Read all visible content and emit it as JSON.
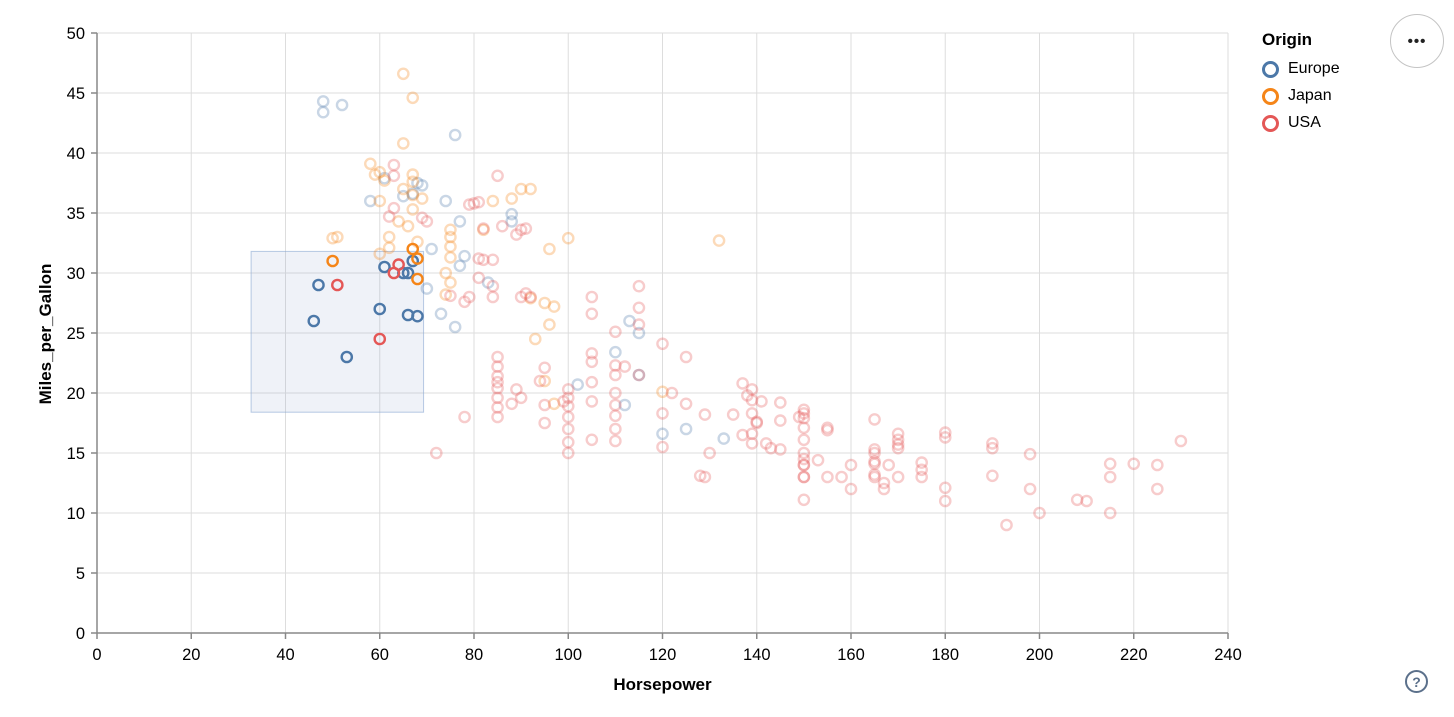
{
  "chart_data": {
    "type": "scatter",
    "title": "",
    "xlabel": "Horsepower",
    "ylabel": "Miles_per_Gallon",
    "xlim": [
      0,
      240
    ],
    "ylim": [
      0,
      50
    ],
    "x_ticks": [
      0,
      20,
      40,
      60,
      80,
      100,
      120,
      140,
      160,
      180,
      200,
      220,
      240
    ],
    "y_ticks": [
      0,
      5,
      10,
      15,
      20,
      25,
      30,
      35,
      40,
      45,
      50
    ],
    "grid": true,
    "legend": {
      "title": "Origin",
      "position": "top-right",
      "entries": [
        {
          "label": "Europe",
          "color": "#4c78a8"
        },
        {
          "label": "Japan",
          "color": "#f58518"
        },
        {
          "label": "USA",
          "color": "#e45756"
        }
      ]
    },
    "origin_codes": {
      "E": "Europe",
      "J": "Japan",
      "U": "USA"
    },
    "colors": {
      "Europe": "#4c78a8",
      "Japan": "#f58518",
      "USA": "#e45756"
    },
    "grid_color": "#dddddd",
    "axis_color": "#888888",
    "label_color": "#000000",
    "unselected_opacity": 0.3,
    "selection_brush": {
      "x": [
        32.7,
        69.3
      ],
      "y": [
        18.4,
        31.8
      ],
      "fill": "#7896c8",
      "fill_opacity": 0.12,
      "stroke": "#88a6d2"
    },
    "points": [
      [
        46,
        26,
        "E",
        1
      ],
      [
        47,
        29,
        "E",
        1
      ],
      [
        53,
        23,
        "E",
        1
      ],
      [
        60,
        27,
        "E",
        1
      ],
      [
        61,
        30.5,
        "E",
        1
      ],
      [
        65,
        30,
        "E",
        1
      ],
      [
        66,
        30,
        "E",
        1
      ],
      [
        67,
        31,
        "E",
        1
      ],
      [
        66,
        26.5,
        "E",
        1
      ],
      [
        68,
        26.4,
        "E",
        1
      ],
      [
        50,
        31,
        "J",
        1
      ],
      [
        67,
        32,
        "J",
        1
      ],
      [
        68,
        31.2,
        "J",
        1
      ],
      [
        68,
        29.5,
        "J",
        1
      ],
      [
        51,
        29,
        "U",
        1
      ],
      [
        60,
        24.5,
        "U",
        1
      ],
      [
        63,
        30,
        "U",
        1
      ],
      [
        64,
        30.7,
        "U",
        1
      ],
      [
        48,
        44.3,
        "E",
        0
      ],
      [
        48,
        43.4,
        "E",
        0
      ],
      [
        52,
        44,
        "E",
        0
      ],
      [
        76,
        41.5,
        "E",
        0
      ],
      [
        61,
        37.9,
        "E",
        0
      ],
      [
        68,
        37.5,
        "E",
        0
      ],
      [
        69,
        37.3,
        "E",
        0
      ],
      [
        65,
        36.4,
        "E",
        0
      ],
      [
        67,
        36.6,
        "E",
        0
      ],
      [
        58,
        36,
        "E",
        0
      ],
      [
        74,
        36,
        "E",
        0
      ],
      [
        77,
        34.3,
        "E",
        0
      ],
      [
        88,
        34.9,
        "E",
        0
      ],
      [
        88,
        34.3,
        "E",
        0
      ],
      [
        83,
        29.2,
        "E",
        0
      ],
      [
        77,
        30.6,
        "E",
        0
      ],
      [
        78,
        31.4,
        "E",
        0
      ],
      [
        70,
        28.7,
        "E",
        0
      ],
      [
        73,
        26.6,
        "E",
        0
      ],
      [
        76,
        25.5,
        "E",
        0
      ],
      [
        71,
        32,
        "E",
        0
      ],
      [
        102,
        20.7,
        "E",
        0
      ],
      [
        110,
        23.4,
        "E",
        0
      ],
      [
        113,
        26,
        "E",
        0
      ],
      [
        115,
        25,
        "E",
        0
      ],
      [
        115,
        21.5,
        "E",
        0
      ],
      [
        112,
        19,
        "E",
        0
      ],
      [
        120,
        16.6,
        "E",
        0
      ],
      [
        125,
        17,
        "E",
        0
      ],
      [
        133,
        16.2,
        "E",
        0
      ],
      [
        65,
        46.6,
        "J",
        0
      ],
      [
        67,
        44.6,
        "J",
        0
      ],
      [
        65,
        40.8,
        "J",
        0
      ],
      [
        58,
        39.1,
        "J",
        0
      ],
      [
        60,
        38.4,
        "J",
        0
      ],
      [
        61,
        37.7,
        "J",
        0
      ],
      [
        59,
        38.2,
        "J",
        0
      ],
      [
        67,
        38.2,
        "J",
        0
      ],
      [
        67,
        37.6,
        "J",
        0
      ],
      [
        65,
        37,
        "J",
        0
      ],
      [
        67,
        36.5,
        "J",
        0
      ],
      [
        60,
        36,
        "J",
        0
      ],
      [
        69,
        36.2,
        "J",
        0
      ],
      [
        67,
        35.3,
        "J",
        0
      ],
      [
        64,
        34.3,
        "J",
        0
      ],
      [
        66,
        33.9,
        "J",
        0
      ],
      [
        62,
        33,
        "J",
        0
      ],
      [
        51,
        33,
        "J",
        0
      ],
      [
        50,
        32.9,
        "J",
        0
      ],
      [
        62,
        32.1,
        "J",
        0
      ],
      [
        60,
        31.6,
        "J",
        0
      ],
      [
        68,
        32.6,
        "J",
        0
      ],
      [
        75,
        33.6,
        "J",
        0
      ],
      [
        75,
        33,
        "J",
        0
      ],
      [
        75,
        32.2,
        "J",
        0
      ],
      [
        75,
        31.3,
        "J",
        0
      ],
      [
        74,
        30,
        "J",
        0
      ],
      [
        75,
        29.2,
        "J",
        0
      ],
      [
        74,
        28.2,
        "J",
        0
      ],
      [
        82,
        33.6,
        "J",
        0
      ],
      [
        84,
        36,
        "J",
        0
      ],
      [
        88,
        36.2,
        "J",
        0
      ],
      [
        90,
        37,
        "J",
        0
      ],
      [
        92,
        37,
        "J",
        0
      ],
      [
        92,
        27.9,
        "J",
        0
      ],
      [
        95,
        27.5,
        "J",
        0
      ],
      [
        97,
        27.2,
        "J",
        0
      ],
      [
        96,
        25.7,
        "J",
        0
      ],
      [
        93,
        24.5,
        "J",
        0
      ],
      [
        100,
        32.9,
        "J",
        0
      ],
      [
        96,
        32,
        "J",
        0
      ],
      [
        95,
        21,
        "J",
        0
      ],
      [
        97,
        19.1,
        "J",
        0
      ],
      [
        132,
        32.7,
        "J",
        0
      ],
      [
        120,
        20.1,
        "J",
        0
      ],
      [
        63,
        39,
        "U",
        0
      ],
      [
        63,
        38.1,
        "U",
        0
      ],
      [
        85,
        38.1,
        "U",
        0
      ],
      [
        63,
        35.4,
        "U",
        0
      ],
      [
        62,
        34.7,
        "U",
        0
      ],
      [
        70,
        34.3,
        "U",
        0
      ],
      [
        69,
        34.6,
        "U",
        0
      ],
      [
        79,
        35.7,
        "U",
        0
      ],
      [
        80,
        35.8,
        "U",
        0
      ],
      [
        81,
        35.9,
        "U",
        0
      ],
      [
        86,
        33.9,
        "U",
        0
      ],
      [
        89,
        33.2,
        "U",
        0
      ],
      [
        82,
        33.7,
        "U",
        0
      ],
      [
        90,
        33.6,
        "U",
        0
      ],
      [
        91,
        33.7,
        "U",
        0
      ],
      [
        81,
        31.2,
        "U",
        0
      ],
      [
        82,
        31.1,
        "U",
        0
      ],
      [
        84,
        31.1,
        "U",
        0
      ],
      [
        81,
        29.6,
        "U",
        0
      ],
      [
        84,
        28.9,
        "U",
        0
      ],
      [
        84,
        28,
        "U",
        0
      ],
      [
        75,
        28.1,
        "U",
        0
      ],
      [
        79,
        28,
        "U",
        0
      ],
      [
        78,
        27.6,
        "U",
        0
      ],
      [
        90,
        28,
        "U",
        0
      ],
      [
        91,
        28.3,
        "U",
        0
      ],
      [
        92,
        28,
        "U",
        0
      ],
      [
        105,
        28,
        "U",
        0
      ],
      [
        105,
        26.6,
        "U",
        0
      ],
      [
        110,
        25.1,
        "U",
        0
      ],
      [
        115,
        28.9,
        "U",
        0
      ],
      [
        115,
        27.1,
        "U",
        0
      ],
      [
        115,
        25.7,
        "U",
        0
      ],
      [
        85,
        23,
        "U",
        0
      ],
      [
        85,
        22.2,
        "U",
        0
      ],
      [
        105,
        23.3,
        "U",
        0
      ],
      [
        105,
        22.6,
        "U",
        0
      ],
      [
        110,
        22.3,
        "U",
        0
      ],
      [
        112,
        22.2,
        "U",
        0
      ],
      [
        120,
        24.1,
        "U",
        0
      ],
      [
        125,
        23,
        "U",
        0
      ],
      [
        95,
        22.1,
        "U",
        0
      ],
      [
        85,
        21.4,
        "U",
        0
      ],
      [
        85,
        20.9,
        "U",
        0
      ],
      [
        85,
        20.4,
        "U",
        0
      ],
      [
        85,
        19.6,
        "U",
        0
      ],
      [
        85,
        18.8,
        "U",
        0
      ],
      [
        85,
        18,
        "U",
        0
      ],
      [
        89,
        20.3,
        "U",
        0
      ],
      [
        90,
        19.6,
        "U",
        0
      ],
      [
        88,
        19.1,
        "U",
        0
      ],
      [
        94,
        21,
        "U",
        0
      ],
      [
        95,
        19,
        "U",
        0
      ],
      [
        95,
        17.5,
        "U",
        0
      ],
      [
        99,
        19.3,
        "U",
        0
      ],
      [
        100,
        20.3,
        "U",
        0
      ],
      [
        100,
        19.6,
        "U",
        0
      ],
      [
        100,
        18.9,
        "U",
        0
      ],
      [
        100,
        18,
        "U",
        0
      ],
      [
        100,
        17,
        "U",
        0
      ],
      [
        105,
        20.9,
        "U",
        0
      ],
      [
        105,
        19.3,
        "U",
        0
      ],
      [
        110,
        21.5,
        "U",
        0
      ],
      [
        110,
        20,
        "U",
        0
      ],
      [
        110,
        19,
        "U",
        0
      ],
      [
        110,
        18.1,
        "U",
        0
      ],
      [
        110,
        17,
        "U",
        0
      ],
      [
        115,
        21.5,
        "U",
        0
      ],
      [
        120,
        18.3,
        "U",
        0
      ],
      [
        122,
        20,
        "U",
        0
      ],
      [
        125,
        19.1,
        "U",
        0
      ],
      [
        72,
        15,
        "U",
        0
      ],
      [
        78,
        18,
        "U",
        0
      ],
      [
        100,
        15.9,
        "U",
        0
      ],
      [
        100,
        15,
        "U",
        0
      ],
      [
        105,
        16.1,
        "U",
        0
      ],
      [
        110,
        16,
        "U",
        0
      ],
      [
        120,
        15.5,
        "U",
        0
      ],
      [
        129,
        18.2,
        "U",
        0
      ],
      [
        128,
        13.1,
        "U",
        0
      ],
      [
        129,
        13,
        "U",
        0
      ],
      [
        130,
        15,
        "U",
        0
      ],
      [
        135,
        18.2,
        "U",
        0
      ],
      [
        137,
        20.8,
        "U",
        0
      ],
      [
        138,
        19.8,
        "U",
        0
      ],
      [
        139,
        20.3,
        "U",
        0
      ],
      [
        139,
        19.4,
        "U",
        0
      ],
      [
        139,
        18.3,
        "U",
        0
      ],
      [
        139,
        16.6,
        "U",
        0
      ],
      [
        139,
        15.8,
        "U",
        0
      ],
      [
        137,
        16.5,
        "U",
        0
      ],
      [
        140,
        17.6,
        "U",
        0
      ],
      [
        140,
        17.5,
        "U",
        0
      ],
      [
        141,
        19.3,
        "U",
        0
      ],
      [
        142,
        15.8,
        "U",
        0
      ],
      [
        143,
        15.4,
        "U",
        0
      ],
      [
        145,
        19.2,
        "U",
        0
      ],
      [
        145,
        17.7,
        "U",
        0
      ],
      [
        145,
        15.3,
        "U",
        0
      ],
      [
        149,
        18,
        "U",
        0
      ],
      [
        150,
        17.9,
        "U",
        0
      ],
      [
        150,
        18.6,
        "U",
        0
      ],
      [
        150,
        18.3,
        "U",
        0
      ],
      [
        150,
        17.1,
        "U",
        0
      ],
      [
        150,
        16.1,
        "U",
        0
      ],
      [
        150,
        15,
        "U",
        0
      ],
      [
        150,
        14.5,
        "U",
        0
      ],
      [
        150,
        14,
        "U",
        0
      ],
      [
        150,
        14,
        "U",
        0
      ],
      [
        150,
        13,
        "U",
        0
      ],
      [
        150,
        13,
        "U",
        0
      ],
      [
        150,
        11.1,
        "U",
        0
      ],
      [
        153,
        14.4,
        "U",
        0
      ],
      [
        155,
        16.9,
        "U",
        0
      ],
      [
        155,
        17.1,
        "U",
        0
      ],
      [
        155,
        13,
        "U",
        0
      ],
      [
        158,
        13,
        "U",
        0
      ],
      [
        160,
        14,
        "U",
        0
      ],
      [
        160,
        12,
        "U",
        0
      ],
      [
        165,
        17.8,
        "U",
        0
      ],
      [
        165,
        15.3,
        "U",
        0
      ],
      [
        165,
        14.3,
        "U",
        0
      ],
      [
        165,
        15,
        "U",
        0
      ],
      [
        165,
        14.1,
        "U",
        0
      ],
      [
        165,
        13.2,
        "U",
        0
      ],
      [
        165,
        13,
        "U",
        0
      ],
      [
        167,
        12,
        "U",
        0
      ],
      [
        167,
        12.5,
        "U",
        0
      ],
      [
        168,
        14,
        "U",
        0
      ],
      [
        170,
        16.6,
        "U",
        0
      ],
      [
        170,
        16.1,
        "U",
        0
      ],
      [
        170,
        15.7,
        "U",
        0
      ],
      [
        170,
        15.4,
        "U",
        0
      ],
      [
        170,
        13,
        "U",
        0
      ],
      [
        175,
        14.2,
        "U",
        0
      ],
      [
        175,
        13.6,
        "U",
        0
      ],
      [
        175,
        13,
        "U",
        0
      ],
      [
        180,
        16.7,
        "U",
        0
      ],
      [
        180,
        16.3,
        "U",
        0
      ],
      [
        180,
        12.1,
        "U",
        0
      ],
      [
        180,
        11,
        "U",
        0
      ],
      [
        190,
        15.8,
        "U",
        0
      ],
      [
        190,
        15.4,
        "U",
        0
      ],
      [
        190,
        13.1,
        "U",
        0
      ],
      [
        193,
        9,
        "U",
        0
      ],
      [
        198,
        14.9,
        "U",
        0
      ],
      [
        198,
        12,
        "U",
        0
      ],
      [
        200,
        10,
        "U",
        0
      ],
      [
        208,
        11.1,
        "U",
        0
      ],
      [
        210,
        11,
        "U",
        0
      ],
      [
        215,
        14.1,
        "U",
        0
      ],
      [
        215,
        13,
        "U",
        0
      ],
      [
        215,
        10,
        "U",
        0
      ],
      [
        220,
        14.1,
        "U",
        0
      ],
      [
        225,
        14,
        "U",
        0
      ],
      [
        225,
        12,
        "U",
        0
      ],
      [
        230,
        16,
        "U",
        0
      ]
    ]
  },
  "controls": {
    "options_icon_glyph": "•••",
    "help_icon_glyph": "?"
  }
}
